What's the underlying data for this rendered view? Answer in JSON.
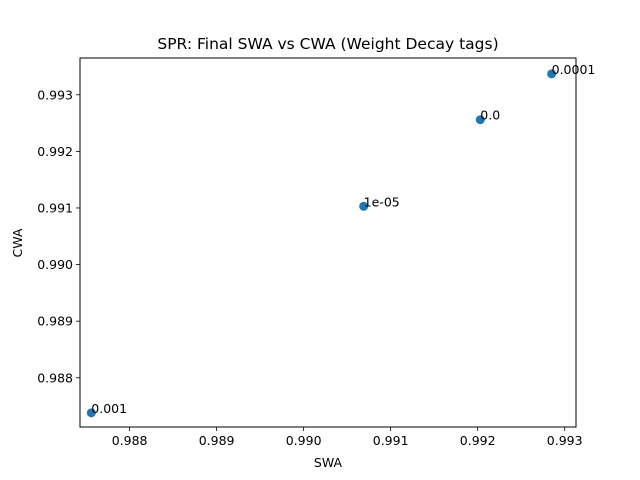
{
  "chart_data": {
    "type": "scatter",
    "title": "SPR: Final SWA vs CWA (Weight Decay tags)",
    "xlabel": "SWA",
    "ylabel": "CWA",
    "xlim": [
      0.98743,
      0.99313
    ],
    "ylim": [
      0.98713,
      0.99365
    ],
    "xticks": [
      0.988,
      0.989,
      0.99,
      0.991,
      0.992,
      0.993
    ],
    "xtick_labels": [
      "0.988",
      "0.989",
      "0.990",
      "0.991",
      "0.992",
      "0.993"
    ],
    "yticks": [
      0.988,
      0.989,
      0.99,
      0.991,
      0.992,
      0.993
    ],
    "ytick_labels": [
      "0.988",
      "0.989",
      "0.990",
      "0.991",
      "0.992",
      "0.993"
    ],
    "grid": false,
    "marker_color": "#1f77b4",
    "points": [
      {
        "x": 0.98756,
        "y": 0.98738,
        "label": "0.001"
      },
      {
        "x": 0.99069,
        "y": 0.99103,
        "label": "1e-05"
      },
      {
        "x": 0.99203,
        "y": 0.99256,
        "label": "0.0"
      },
      {
        "x": 0.99285,
        "y": 0.99337,
        "label": "0.0001"
      }
    ]
  }
}
